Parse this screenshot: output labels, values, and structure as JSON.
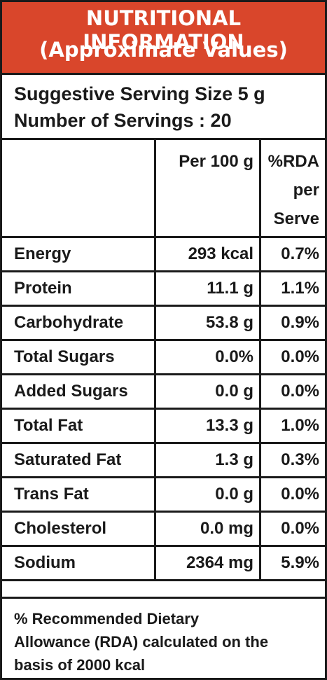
{
  "header": {
    "title": "NUTRITIONAL INFORMATION",
    "subtitle": "(Approximate Values)"
  },
  "serving": {
    "size": "Suggestive Serving Size 5 g",
    "count": "Number of Servings : 20"
  },
  "table": {
    "headers": {
      "per100": "Per 100 g",
      "rda_line1": "%RDA",
      "rda_line2": "per",
      "rda_line3": "Serve"
    },
    "rows": [
      {
        "name": "Energy",
        "per100": "293 kcal",
        "rda": "0.7%"
      },
      {
        "name": "Protein",
        "per100": "11.1 g",
        "rda": "1.1%"
      },
      {
        "name": "Carbohydrate",
        "per100": "53.8 g",
        "rda": "0.9%"
      },
      {
        "name": "Total Sugars",
        "per100": "0.0%",
        "rda": "0.0%"
      },
      {
        "name": "Added Sugars",
        "per100": "0.0 g",
        "rda": "0.0%"
      },
      {
        "name": "Total Fat",
        "per100": "13.3 g",
        "rda": "1.0%"
      },
      {
        "name": "Saturated Fat",
        "per100": "1.3 g",
        "rda": "0.3%"
      },
      {
        "name": "Trans Fat",
        "per100": "0.0 g",
        "rda": "0.0%"
      },
      {
        "name": "Cholesterol",
        "per100": "0.0 mg",
        "rda": "0.0%"
      },
      {
        "name": "Sodium",
        "per100": "2364 mg",
        "rda": "5.9%"
      }
    ]
  },
  "footnote": {
    "line1": "% Recommended Dietary",
    "line2": "Allowance (RDA) calculated on the",
    "line3": "basis of 2000 kcal"
  },
  "colors": {
    "header_bg": "#d9462b",
    "header_text": "#ffffff",
    "border": "#1a1a1a"
  }
}
